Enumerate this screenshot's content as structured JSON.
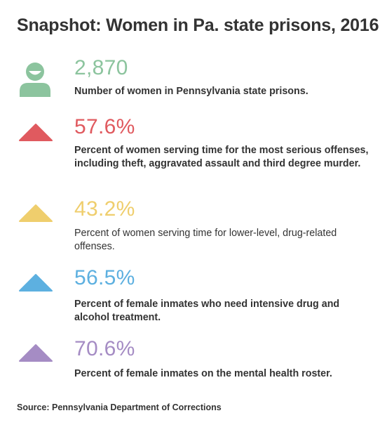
{
  "title": "Snapshot: Women in Pa. state prisons, 2016",
  "stats": [
    {
      "icon": "person-icon",
      "color": "#8cc49e",
      "value": "2,870",
      "description": "Number of women in Pennsylvania state prisons."
    },
    {
      "icon": "triangle-icon",
      "color": "#e05a5f",
      "value": "57.6%",
      "description": "Percent of women serving time for the most serious offenses, including theft, aggravated assault and third degree murder."
    },
    {
      "icon": "triangle-icon",
      "color": "#efce6d",
      "value": "43.2%",
      "description": "Percent of women serving time for lower-level, drug-related offenses."
    },
    {
      "icon": "triangle-icon",
      "color": "#5db0e0",
      "value": "56.5%",
      "description": "Percent of female inmates who need intensive drug and alcohol treatment."
    },
    {
      "icon": "triangle-icon",
      "color": "#a58cc4",
      "value": "70.6%",
      "description": "Percent of female inmates on the mental health roster."
    }
  ],
  "source": "Source: Pennsylvania Department of Corrections"
}
